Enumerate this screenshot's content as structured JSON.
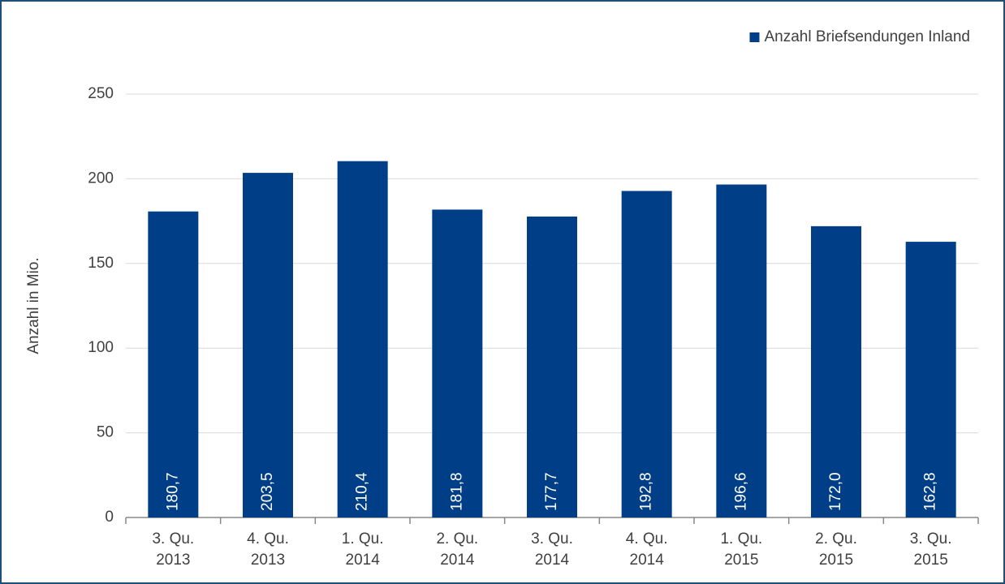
{
  "chart_data": {
    "type": "bar",
    "y_axis_label": "Anzahl in Mio.",
    "categories": [
      "3. Qu.\n2013",
      "4. Qu.\n2013",
      "1. Qu.\n2014",
      "2. Qu.\n2014",
      "3. Qu.\n2014",
      "4. Qu.\n2014",
      "1. Qu.\n2015",
      "2. Qu.\n2015",
      "3. Qu.\n2015"
    ],
    "series": [
      {
        "name": "Anzahl Briefsendungen Inland",
        "color": "#003f87",
        "values": [
          180.7,
          203.5,
          210.4,
          181.8,
          177.7,
          192.8,
          196.6,
          172.0,
          162.8
        ],
        "value_labels": [
          "180,7",
          "203,5",
          "210,4",
          "181,8",
          "177,7",
          "192,8",
          "196,6",
          "172,0",
          "162,8"
        ]
      }
    ],
    "ylim": [
      0,
      250
    ],
    "yticks": [
      0,
      50,
      100,
      150,
      200,
      250
    ],
    "grid": true,
    "legend": "top-right"
  }
}
